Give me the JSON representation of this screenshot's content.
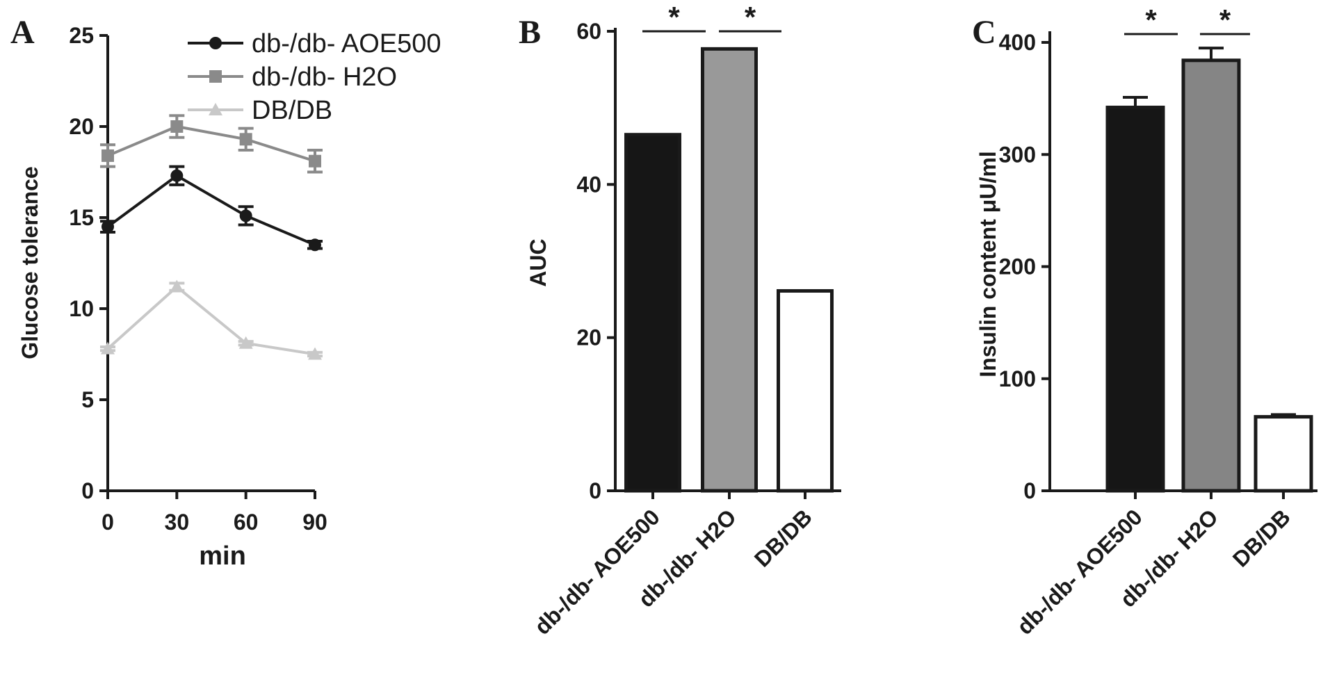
{
  "colors": {
    "AOE500": "#1a1a1a",
    "H2O": "#8a8a8a",
    "DBDB": "#c8c8c8",
    "bar_A": "#161616",
    "bar_B": "#999999",
    "bar_B_C": "#858585",
    "bar_C": "#ffffff",
    "ink": "#1a1a1a"
  },
  "chart_data": [
    {
      "panel": "A",
      "type": "line",
      "xlabel": "min",
      "ylabel": "Glucose tolerance",
      "x": [
        0,
        30,
        60,
        90
      ],
      "xlim": [
        0,
        90
      ],
      "ylim": [
        0,
        25
      ],
      "yticks": [
        0,
        5,
        10,
        15,
        20,
        25
      ],
      "xticks": [
        0,
        30,
        60,
        90
      ],
      "legend_position": "top-right",
      "series": [
        {
          "name": "db-/db- AOE500",
          "marker": "circle",
          "values": [
            14.5,
            17.3,
            15.1,
            13.5
          ],
          "errors": [
            0.3,
            0.5,
            0.5,
            0.2
          ]
        },
        {
          "name": "db-/db- H2O",
          "marker": "square",
          "values": [
            18.4,
            20.0,
            19.3,
            18.1
          ],
          "errors": [
            0.6,
            0.6,
            0.6,
            0.6
          ]
        },
        {
          "name": "DB/DB",
          "marker": "triangle",
          "values": [
            7.8,
            11.2,
            8.1,
            7.5
          ],
          "errors": [
            0.1,
            0.2,
            0.1,
            0.1
          ]
        }
      ]
    },
    {
      "panel": "B",
      "type": "bar",
      "ylabel": "AUC",
      "categories": [
        "db-/db- AOE500",
        "db-/db- H2O",
        "DB/DB"
      ],
      "values": [
        46.5,
        57.7,
        26.1
      ],
      "ylim": [
        0,
        60
      ],
      "yticks": [
        0,
        20,
        40,
        60
      ],
      "significance": [
        {
          "pair": [
            0,
            1
          ],
          "label": "*"
        },
        {
          "pair": [
            1,
            2
          ],
          "label": "*"
        }
      ]
    },
    {
      "panel": "C",
      "type": "bar",
      "ylabel": "Insulin content  μU/ml",
      "categories": [
        "db-/db- AOE500",
        "db-/db- H2O",
        "DB/DB"
      ],
      "values": [
        342,
        384,
        66
      ],
      "errors": [
        9,
        11,
        2
      ],
      "ylim": [
        0,
        400
      ],
      "yticks": [
        0,
        100,
        200,
        300,
        400
      ],
      "significance": [
        {
          "pair": [
            0,
            1
          ],
          "label": "*"
        },
        {
          "pair": [
            1,
            2
          ],
          "label": "*"
        }
      ]
    }
  ]
}
